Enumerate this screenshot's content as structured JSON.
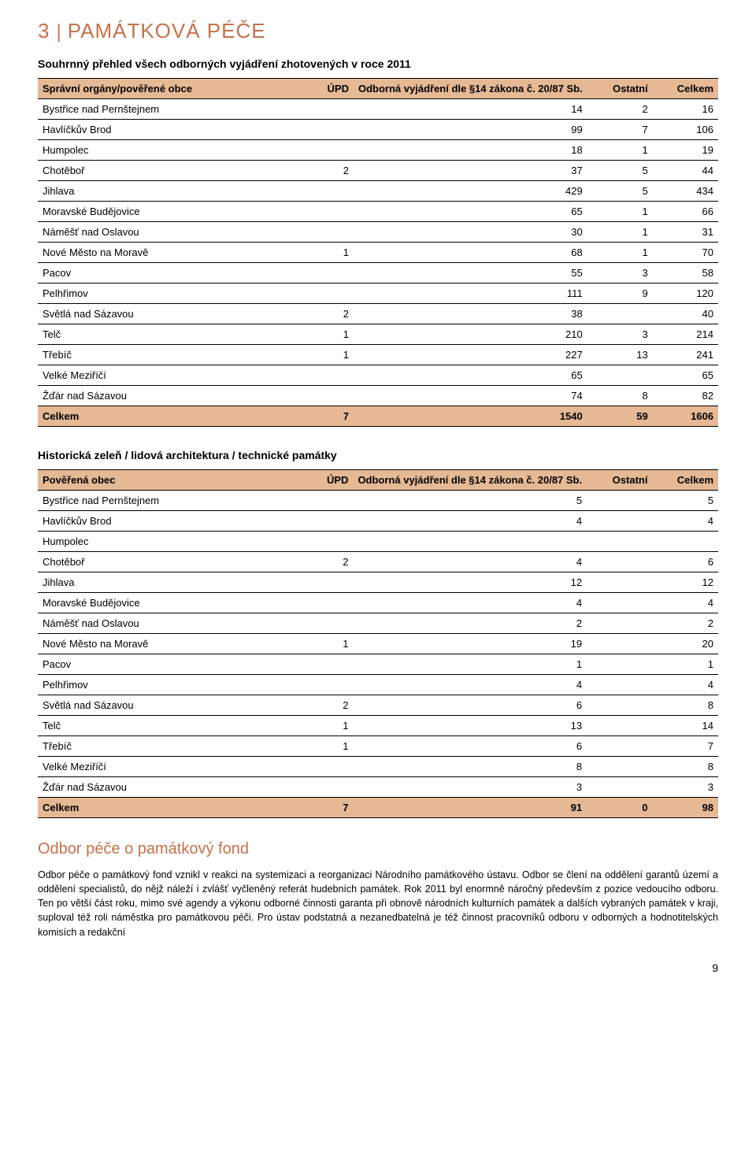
{
  "header": {
    "number": "3",
    "divider": "|",
    "title": "PAMÁTKOVÁ PÉČE"
  },
  "summary_title": "Souhrnný přehled všech odborných vyjádření zhotovených v roce 2011",
  "table1": {
    "columns": [
      {
        "label": "Správní orgány/pověřené obce",
        "key": "spravni"
      },
      {
        "label": "ÚPD",
        "key": "upd"
      },
      {
        "label": "Odborná vyjádření dle §14 zákona č. 20/87 Sb.",
        "key": "odb"
      },
      {
        "label": "Ostatní",
        "key": "ost"
      },
      {
        "label": "Celkem",
        "key": "cel"
      }
    ],
    "rows": [
      {
        "c0": "Bystřice nad Pernštejnem",
        "c1": "",
        "c2": "14",
        "c3": "2",
        "c4": "16"
      },
      {
        "c0": "Havlíčkův Brod",
        "c1": "",
        "c2": "99",
        "c3": "7",
        "c4": "106"
      },
      {
        "c0": "Humpolec",
        "c1": "",
        "c2": "18",
        "c3": "1",
        "c4": "19"
      },
      {
        "c0": "Chotěboř",
        "c1": "2",
        "c2": "37",
        "c3": "5",
        "c4": "44"
      },
      {
        "c0": "Jihlava",
        "c1": "",
        "c2": "429",
        "c3": "5",
        "c4": "434"
      },
      {
        "c0": "Moravské Budějovice",
        "c1": "",
        "c2": "65",
        "c3": "1",
        "c4": "66"
      },
      {
        "c0": "Náměšť nad Oslavou",
        "c1": "",
        "c2": "30",
        "c3": "1",
        "c4": "31"
      },
      {
        "c0": "Nové Město na Moravě",
        "c1": "1",
        "c2": "68",
        "c3": "1",
        "c4": "70"
      },
      {
        "c0": "Pacov",
        "c1": "",
        "c2": "55",
        "c3": "3",
        "c4": "58"
      },
      {
        "c0": "Pelhřimov",
        "c1": "",
        "c2": "111",
        "c3": "9",
        "c4": "120"
      },
      {
        "c0": "Světlá nad Sázavou",
        "c1": "2",
        "c2": "38",
        "c3": "",
        "c4": "40"
      },
      {
        "c0": "Telč",
        "c1": "1",
        "c2": "210",
        "c3": "3",
        "c4": "214"
      },
      {
        "c0": "Třebíč",
        "c1": "1",
        "c2": "227",
        "c3": "13",
        "c4": "241"
      },
      {
        "c0": "Velké Meziříčí",
        "c1": "",
        "c2": "65",
        "c3": "",
        "c4": "65"
      },
      {
        "c0": "Žďár nad Sázavou",
        "c1": "",
        "c2": "74",
        "c3": "8",
        "c4": "82"
      }
    ],
    "total": {
      "c0": "Celkem",
      "c1": "7",
      "c2": "1540",
      "c3": "59",
      "c4": "1606"
    }
  },
  "table2_title": "Historická zeleň / lidová architektura / technické památky",
  "table2": {
    "columns": [
      {
        "label": "Pověřená obec",
        "key": "spravni"
      },
      {
        "label": "ÚPD",
        "key": "upd"
      },
      {
        "label": "Odborná vyjádření dle §14 zákona č. 20/87 Sb.",
        "key": "odb"
      },
      {
        "label": "Ostatní",
        "key": "ost"
      },
      {
        "label": "Celkem",
        "key": "cel"
      }
    ],
    "rows": [
      {
        "c0": "Bystřice nad Pernštejnem",
        "c1": "",
        "c2": "5",
        "c3": "",
        "c4": "5"
      },
      {
        "c0": "Havlíčkův Brod",
        "c1": "",
        "c2": "4",
        "c3": "",
        "c4": "4"
      },
      {
        "c0": "Humpolec",
        "c1": "",
        "c2": "",
        "c3": "",
        "c4": ""
      },
      {
        "c0": "Chotěboř",
        "c1": "2",
        "c2": "4",
        "c3": "",
        "c4": "6"
      },
      {
        "c0": "Jihlava",
        "c1": "",
        "c2": "12",
        "c3": "",
        "c4": "12"
      },
      {
        "c0": "Moravské Budějovice",
        "c1": "",
        "c2": "4",
        "c3": "",
        "c4": "4"
      },
      {
        "c0": "Náměšť nad Oslavou",
        "c1": "",
        "c2": "2",
        "c3": "",
        "c4": "2"
      },
      {
        "c0": "Nové Město na Moravě",
        "c1": "1",
        "c2": "19",
        "c3": "",
        "c4": "20"
      },
      {
        "c0": "Pacov",
        "c1": "",
        "c2": "1",
        "c3": "",
        "c4": "1"
      },
      {
        "c0": "Pelhřimov",
        "c1": "",
        "c2": "4",
        "c3": "",
        "c4": "4"
      },
      {
        "c0": "Světlá nad Sázavou",
        "c1": "2",
        "c2": "6",
        "c3": "",
        "c4": "8"
      },
      {
        "c0": "Telč",
        "c1": "1",
        "c2": "13",
        "c3": "",
        "c4": "14"
      },
      {
        "c0": "Třebíč",
        "c1": "1",
        "c2": "6",
        "c3": "",
        "c4": "7"
      },
      {
        "c0": "Velké Meziříčí",
        "c1": "",
        "c2": "8",
        "c3": "",
        "c4": "8"
      },
      {
        "c0": "Žďár nad Sázavou",
        "c1": "",
        "c2": "3",
        "c3": "",
        "c4": "3"
      }
    ],
    "total": {
      "c0": "Celkem",
      "c1": "7",
      "c2": "91",
      "c3": "0",
      "c4": "98"
    }
  },
  "odbor": {
    "title": "Odbor péče o památkový fond",
    "paragraph": "Odbor péče o památkový fond vznikl v reakci na systemizaci a reorganizaci Národního památkového ústavu. Odbor se člení na oddělení garantů území a oddělení specialistů, do nějž náleží i zvlášť vyčleněný referát hudebních památek. Rok 2011 byl enormně náročný především z pozice vedoucího odboru. Ten po větší část roku, mimo své agendy a výkonu odborné činnosti garanta při obnově národních kulturních památek a dalších vybraných památek v kraji, suploval též roli náměstka pro památkovou péči. Pro ústav podstatná a nezanedbatelná je též činnost pracovníků odboru v odborných a hodnotitelských komisích a redakční"
  },
  "page_number": "9",
  "colors": {
    "header_bg": "#e6b995",
    "accent": "#c7714a",
    "border": "#000000"
  }
}
